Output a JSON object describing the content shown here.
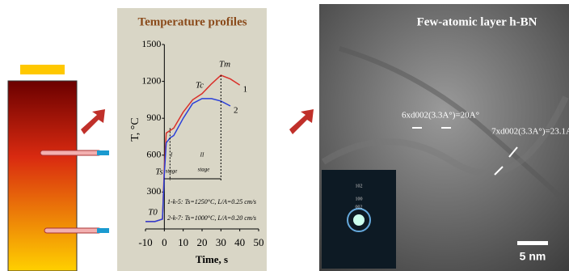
{
  "chart_data": {
    "type": "line",
    "title": "Temperature profiles",
    "x_label": "Time, s",
    "y_label": "T, °C",
    "x": [
      -10,
      -5,
      -1,
      0,
      1,
      3,
      5,
      10,
      15,
      20,
      25,
      30,
      35,
      40
    ],
    "series": [
      {
        "name": "1",
        "color": "#d9302a",
        "values": [
          60,
          60,
          80,
          500,
          780,
          800,
          820,
          950,
          1050,
          1100,
          1180,
          1250,
          1220,
          1170
        ]
      },
      {
        "name": "2",
        "color": "#2a3fd9",
        "values": [
          60,
          60,
          80,
          450,
          700,
          740,
          760,
          900,
          1020,
          1060,
          1060,
          1040,
          1000,
          null
        ]
      }
    ],
    "xlim": [
      -10,
      50
    ],
    "xticks": [
      -10,
      0,
      10,
      20,
      30,
      40,
      50
    ],
    "ylim": [
      0,
      1500
    ],
    "yticks": [
      300,
      600,
      900,
      1200,
      1500
    ],
    "annotations": [
      "Tm",
      "Tc",
      "T0",
      "Ts",
      "I",
      "II",
      "stage",
      "stage",
      "1-k-5: Ts=1250°C, L/A=0.25 cm/s",
      "2-k-7: Ts=1000°C, L/A=0.20 cm/s"
    ]
  },
  "tem_panel": {
    "title": "Few-atomic layer h-BN",
    "label_a": "6xd002(3.3A°)=20A°",
    "label_b": "7xd002(3.3A°)=23.1A",
    "scale": "5 nm",
    "inset": [
      "102",
      "100",
      "002"
    ]
  }
}
